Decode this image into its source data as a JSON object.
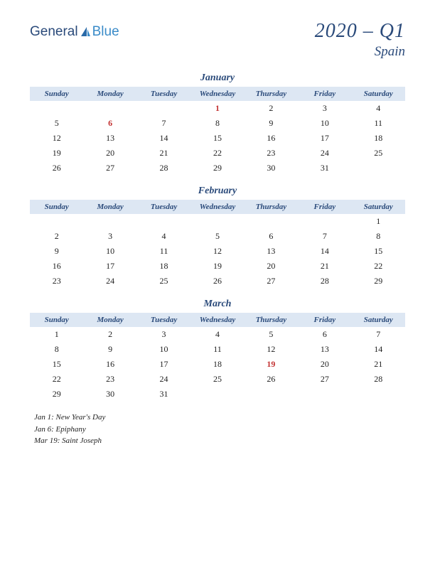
{
  "brand": {
    "part1": "General",
    "part2": "Blue"
  },
  "title": {
    "main": "2020 – Q1",
    "sub": "Spain"
  },
  "colors": {
    "brand_dark": "#2a4a7a",
    "brand_light": "#3a8bc8",
    "header_bg": "#dde7f3",
    "holiday_text": "#c33333",
    "body_text": "#222222",
    "page_bg": "#ffffff"
  },
  "day_headers": [
    "Sunday",
    "Monday",
    "Tuesday",
    "Wednesday",
    "Thursday",
    "Friday",
    "Saturday"
  ],
  "months": [
    {
      "name": "January",
      "weeks": [
        [
          "",
          "",
          "",
          "1",
          "2",
          "3",
          "4"
        ],
        [
          "5",
          "6",
          "7",
          "8",
          "9",
          "10",
          "11"
        ],
        [
          "12",
          "13",
          "14",
          "15",
          "16",
          "17",
          "18"
        ],
        [
          "19",
          "20",
          "21",
          "22",
          "23",
          "24",
          "25"
        ],
        [
          "26",
          "27",
          "28",
          "29",
          "30",
          "31",
          ""
        ]
      ],
      "holiday_days": [
        "1",
        "6"
      ]
    },
    {
      "name": "February",
      "weeks": [
        [
          "",
          "",
          "",
          "",
          "",
          "",
          "1"
        ],
        [
          "2",
          "3",
          "4",
          "5",
          "6",
          "7",
          "8"
        ],
        [
          "9",
          "10",
          "11",
          "12",
          "13",
          "14",
          "15"
        ],
        [
          "16",
          "17",
          "18",
          "19",
          "20",
          "21",
          "22"
        ],
        [
          "23",
          "24",
          "25",
          "26",
          "27",
          "28",
          "29"
        ]
      ],
      "holiday_days": []
    },
    {
      "name": "March",
      "weeks": [
        [
          "1",
          "2",
          "3",
          "4",
          "5",
          "6",
          "7"
        ],
        [
          "8",
          "9",
          "10",
          "11",
          "12",
          "13",
          "14"
        ],
        [
          "15",
          "16",
          "17",
          "18",
          "19",
          "20",
          "21"
        ],
        [
          "22",
          "23",
          "24",
          "25",
          "26",
          "27",
          "28"
        ],
        [
          "29",
          "30",
          "31",
          "",
          "",
          "",
          ""
        ]
      ],
      "holiday_days": [
        "19"
      ]
    }
  ],
  "holidays_list": [
    "Jan 1: New Year's Day",
    "Jan 6: Epiphany",
    "Mar 19: Saint Joseph"
  ]
}
